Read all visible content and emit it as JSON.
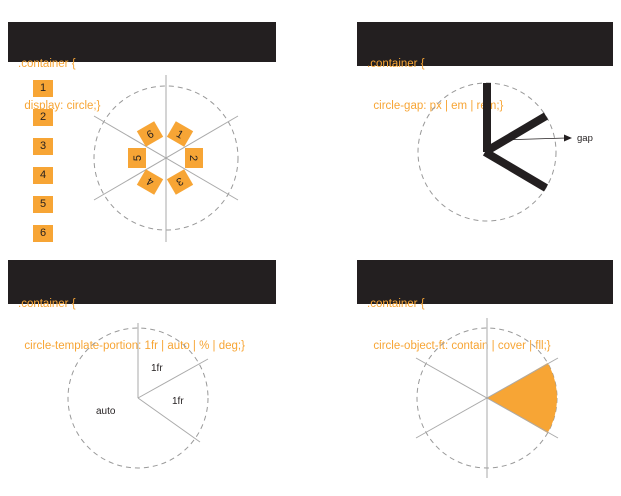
{
  "panels": [
    {
      "line1": ".container {",
      "line2": "  display: circle;}"
    },
    {
      "line1": ".container {",
      "line2": "  circle-gap: px | em | rem;}"
    },
    {
      "line1": ".container {",
      "line2": "  circle-template-portion: 1fr | auto | % | deg;}"
    },
    {
      "line1": ".container {",
      "line2": "  circle-object-ft: contain | cover | fll;}"
    }
  ],
  "stack_items": [
    "1",
    "2",
    "3",
    "4",
    "5",
    "6"
  ],
  "circle_items": [
    "6",
    "1",
    "2",
    "3",
    "4",
    "5"
  ],
  "gap_label": "gap",
  "portion_labels": {
    "top": "1fr",
    "right": "1fr",
    "left": "auto"
  },
  "colors": {
    "dark": "#231f20",
    "accent": "#f7a535",
    "line": "#999999"
  }
}
